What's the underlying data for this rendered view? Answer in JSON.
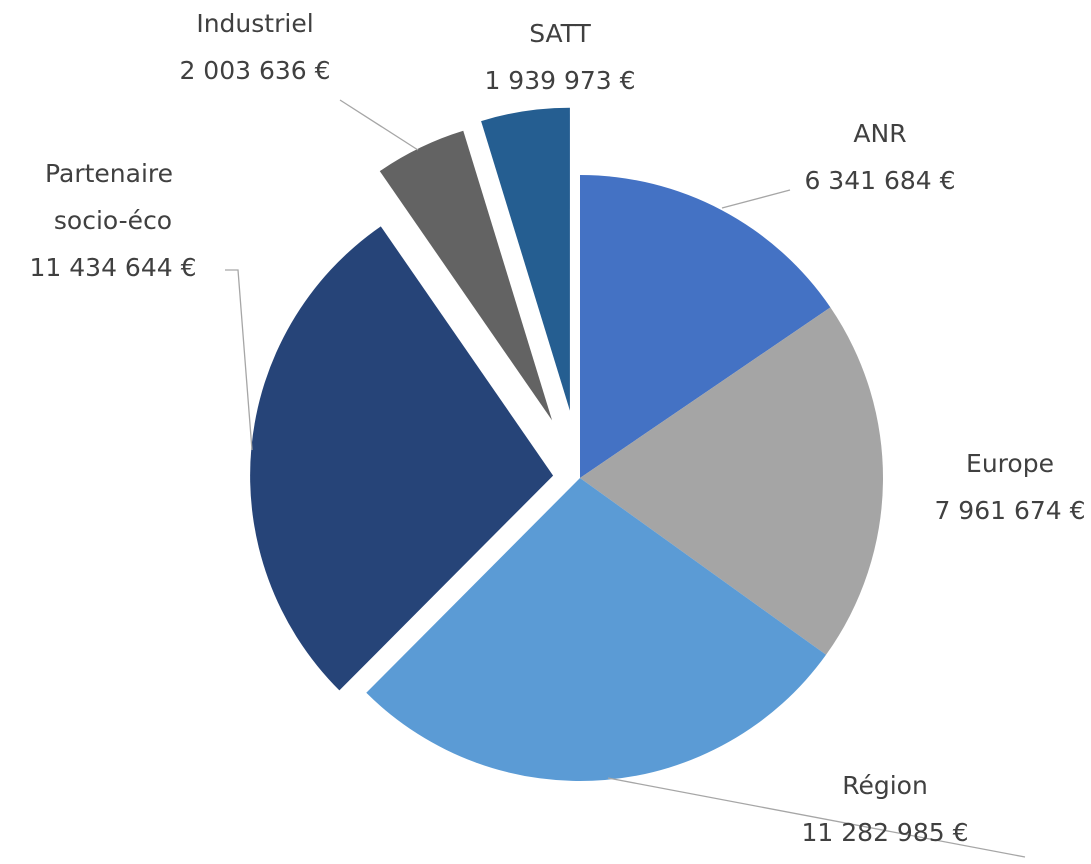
{
  "chart_data": {
    "type": "pie",
    "categories": [
      "ANR",
      "Europe",
      "Région",
      "Partenaire socio-éco",
      "Industriel",
      "SATT"
    ],
    "values": [
      6341684,
      7961674,
      11282985,
      11434644,
      2003636,
      1939973
    ],
    "value_labels": [
      "6 341 684 €",
      "7 961 674 €",
      "11 282 985 €",
      "11 434 644 €",
      "2 003 636 €",
      "1 939 973 €"
    ],
    "colors": [
      "#4472c4",
      "#a5a5a5",
      "#5b9bd5",
      "#264478",
      "#636363",
      "#255e91"
    ]
  }
}
